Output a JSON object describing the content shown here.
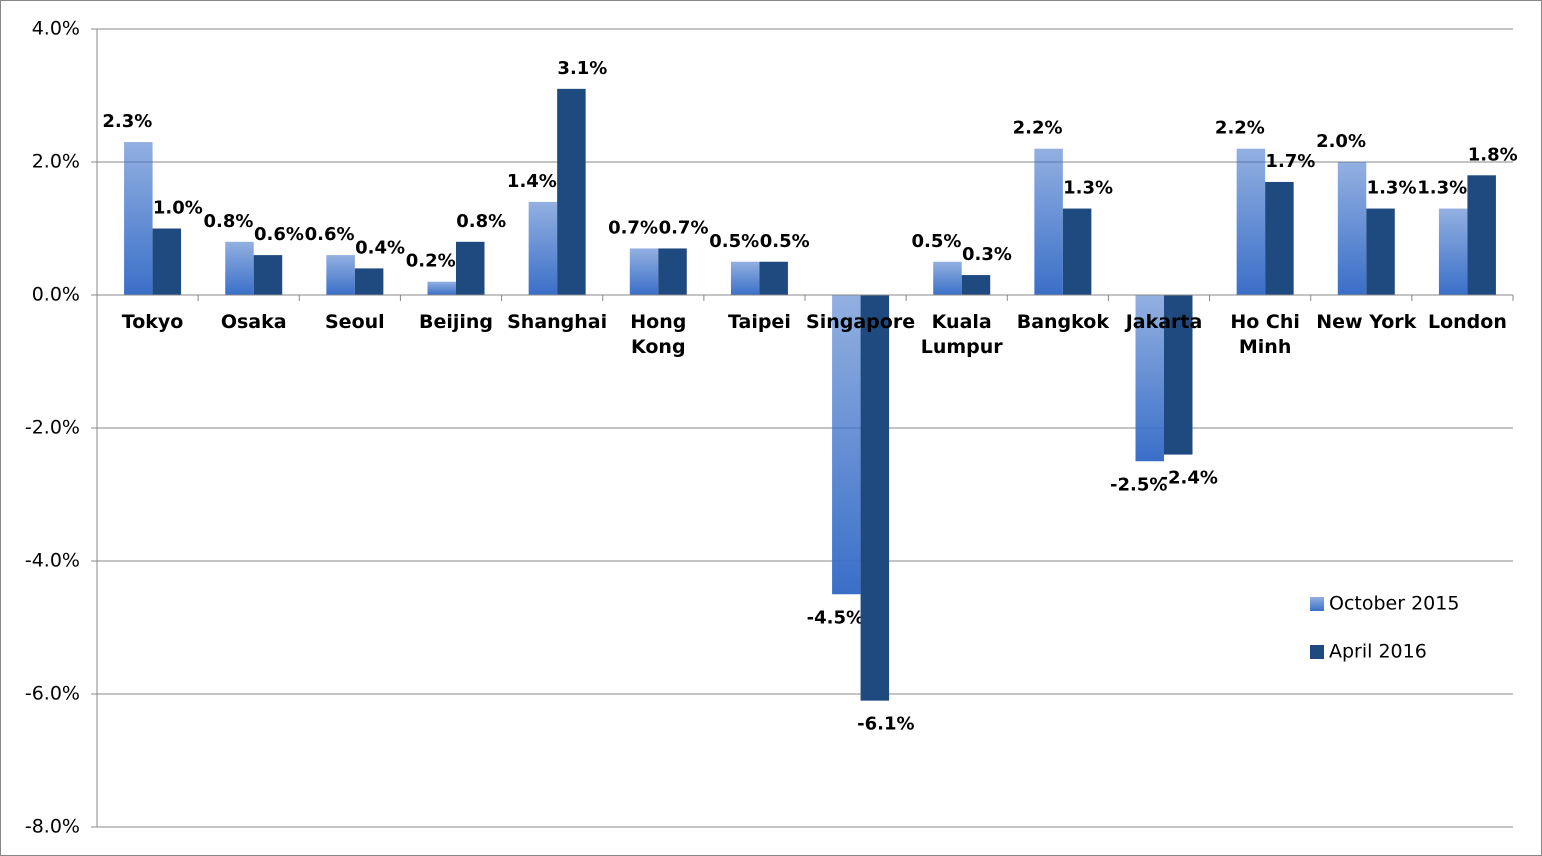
{
  "chart_data": {
    "type": "bar",
    "categories": [
      "Tokyo",
      "Osaka",
      "Seoul",
      "Beijing",
      "Shanghai",
      "Hong\nKong",
      "Taipei",
      "Singapore",
      "Kuala\nLumpur",
      "Bangkok",
      "Jakarta",
      "Ho Chi\nMinh",
      "New York",
      "London"
    ],
    "series": [
      {
        "name": "October 2015",
        "color": "#3a6fc8",
        "values": [
          2.3,
          0.8,
          0.6,
          0.2,
          1.4,
          0.7,
          0.5,
          -4.5,
          0.5,
          2.2,
          -2.5,
          2.2,
          2.0,
          1.3
        ],
        "value_labels": [
          "2.3%",
          "0.8%",
          "0.6%",
          "0.2%",
          "1.4%",
          "0.7%",
          "0.5%",
          "-4.5%",
          "0.5%",
          "2.2%",
          "-2.5%",
          "2.2%",
          "2.0%",
          "1.3%"
        ]
      },
      {
        "name": "April 2016",
        "color": "#1f4a80",
        "values": [
          1.0,
          0.6,
          0.4,
          0.8,
          3.1,
          0.7,
          0.5,
          -6.1,
          0.3,
          1.3,
          -2.4,
          1.7,
          1.3,
          1.8
        ],
        "value_labels": [
          "1.0%",
          "0.6%",
          "0.4%",
          "0.8%",
          "3.1%",
          "0.7%",
          "0.5%",
          "-6.1%",
          "0.3%",
          "1.3%",
          "-2.4%",
          "1.7%",
          "1.3%",
          "1.8%"
        ]
      }
    ],
    "ylim": [
      -8,
      4
    ],
    "yticks": [
      {
        "value": -8,
        "label": "-8.0%"
      },
      {
        "value": -6,
        "label": "-6.0%"
      },
      {
        "value": -4,
        "label": "-4.0%"
      },
      {
        "value": -2,
        "label": "-2.0%"
      },
      {
        "value": 0,
        "label": "0.0%"
      },
      {
        "value": 2,
        "label": "2.0%"
      },
      {
        "value": 4,
        "label": "4.0%"
      }
    ],
    "grid": true,
    "legend": "right"
  }
}
